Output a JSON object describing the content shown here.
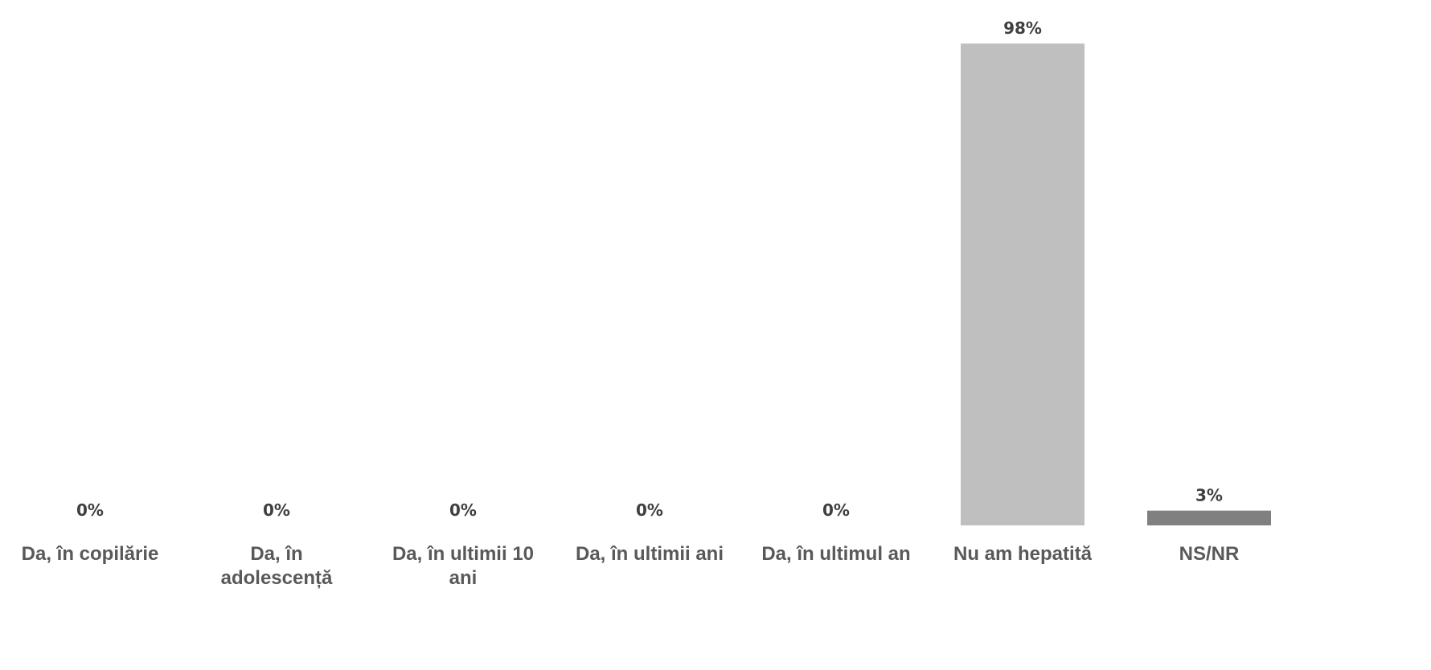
{
  "chart_data": {
    "type": "bar",
    "categories": [
      [
        "Da, în copilărie"
      ],
      [
        "Da, în",
        "adolescență"
      ],
      [
        "Da, în ultimii 10",
        "ani"
      ],
      [
        "Da, în ultimii ani"
      ],
      [
        "Da, în ultimul an"
      ],
      [
        "Nu am hepatită"
      ],
      [
        "NS/NR"
      ]
    ],
    "values": [
      0,
      0,
      0,
      0,
      0,
      98,
      3
    ],
    "value_labels": [
      "0%",
      "0%",
      "0%",
      "0%",
      "0%",
      "98%",
      "3%"
    ],
    "bar_colors": [
      "#bfbfbf",
      "#bfbfbf",
      "#bfbfbf",
      "#bfbfbf",
      "#bfbfbf",
      "#bfbfbf",
      "#808080"
    ],
    "ylim": [
      0,
      100
    ],
    "grid": false,
    "legend": "none",
    "axes_visible": false
  }
}
